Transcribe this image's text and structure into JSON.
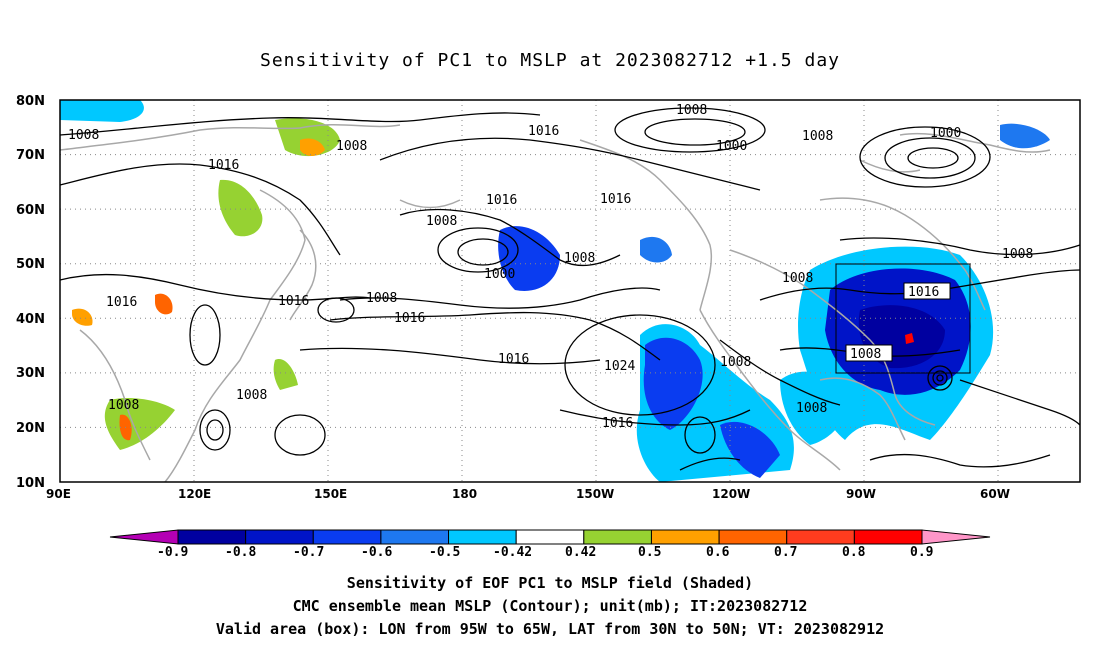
{
  "title": "Sensitivity of PC1 to MSLP at 2023082712 +1.5 day",
  "lat_labels": [
    "80N",
    "70N",
    "60N",
    "50N",
    "40N",
    "30N",
    "20N",
    "10N"
  ],
  "lon_labels": [
    "90E",
    "120E",
    "150E",
    "180",
    "150W",
    "120W",
    "90W",
    "60W"
  ],
  "contour_labels": [
    "1008",
    "1016",
    "1016",
    "1008",
    "1000",
    "1008",
    "1000",
    "1008",
    "1016",
    "1016",
    "1008",
    "1000",
    "1008",
    "1008",
    "1016",
    "1008",
    "1016",
    "1016",
    "1008",
    "1024",
    "1008",
    "1016",
    "1008",
    "1016",
    "1008",
    "1008"
  ],
  "colorbar": {
    "labels": [
      "-0.9",
      "-0.8",
      "-0.7",
      "-0.6",
      "-0.5",
      "-0.42",
      "0.42",
      "0.5",
      "0.6",
      "0.7",
      "0.8",
      "0.9"
    ],
    "colors": [
      "#b400b4",
      "#0000a0",
      "#0014c8",
      "#0a3cf0",
      "#1e78f0",
      "#00c8ff",
      "#ffffff",
      "#96d232",
      "#ffa000",
      "#ff6400",
      "#ff3c1e",
      "#ff0000",
      "#ff96c8"
    ]
  },
  "captions": [
    "Sensitivity of EOF PC1 to MSLP field (Shaded)",
    "CMC ensemble mean MSLP (Contour); unit(mb); IT:2023082712",
    "Valid area (box): LON from 95W to 65W, LAT from 30N to 50N; VT: 2023082912"
  ]
}
